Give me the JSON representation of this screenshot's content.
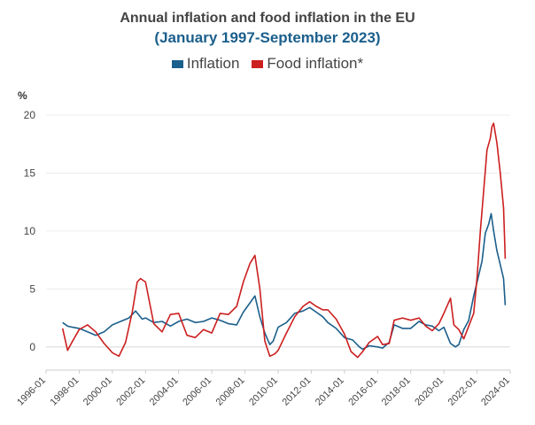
{
  "chart_data": {
    "type": "line",
    "title": "Annual inflation and food inflation in the EU",
    "subtitle": "(January 1997-September 2023)",
    "ylabel": "%",
    "ylim": [
      -2,
      20
    ],
    "yticks": [
      0,
      5,
      10,
      15,
      20
    ],
    "xlim": [
      1996.0,
      2024.0
    ],
    "xticks": [
      "1996-01",
      "1998-01",
      "2000-01",
      "2002-01",
      "2004-01",
      "2006-01",
      "2008-01",
      "2010-01",
      "2012-01",
      "2014-01",
      "2016-01",
      "2018-01",
      "2020-01",
      "2022-01",
      "2024-01"
    ],
    "legend": "top",
    "series": [
      {
        "name": "Inflation",
        "color": "#1b5f8c",
        "x": [
          1997.0,
          1997.3,
          1997.6,
          1998.0,
          1998.5,
          1999.0,
          1999.5,
          2000.0,
          2000.5,
          2001.0,
          2001.4,
          2001.8,
          2002.0,
          2002.5,
          2003.0,
          2003.5,
          2004.0,
          2004.5,
          2005.0,
          2005.5,
          2006.0,
          2006.5,
          2007.0,
          2007.5,
          2007.9,
          2008.3,
          2008.6,
          2008.9,
          2009.2,
          2009.5,
          2009.7,
          2010.0,
          2010.5,
          2011.0,
          2011.5,
          2011.9,
          2012.3,
          2012.7,
          2013.0,
          2013.5,
          2014.0,
          2014.5,
          2014.9,
          2015.1,
          2015.5,
          2016.0,
          2016.3,
          2016.7,
          2017.0,
          2017.5,
          2018.0,
          2018.5,
          2018.9,
          2019.3,
          2019.7,
          2020.0,
          2020.4,
          2020.7,
          2020.9,
          2021.2,
          2021.5,
          2021.8,
          2022.0,
          2022.3,
          2022.5,
          2022.7,
          2022.85,
          2023.0,
          2023.2,
          2023.4,
          2023.6,
          2023.7
        ],
        "y": [
          2.1,
          1.8,
          1.7,
          1.6,
          1.3,
          1.0,
          1.3,
          1.9,
          2.2,
          2.5,
          3.1,
          2.4,
          2.5,
          2.1,
          2.2,
          1.8,
          2.2,
          2.4,
          2.1,
          2.2,
          2.5,
          2.3,
          2.0,
          1.9,
          3.0,
          3.8,
          4.4,
          2.6,
          1.2,
          0.2,
          0.5,
          1.7,
          2.1,
          2.9,
          3.1,
          3.4,
          3.0,
          2.6,
          2.1,
          1.6,
          0.8,
          0.6,
          0.0,
          -0.2,
          0.1,
          0.0,
          -0.1,
          0.4,
          1.9,
          1.6,
          1.6,
          2.2,
          1.9,
          1.8,
          1.4,
          1.7,
          0.3,
          0.0,
          0.2,
          1.5,
          2.3,
          4.4,
          5.6,
          7.4,
          9.8,
          10.6,
          11.5,
          10.0,
          8.3,
          7.1,
          5.9,
          3.6
        ]
      },
      {
        "name": "Food inflation*",
        "color": "#cc1f1f",
        "x": [
          1997.0,
          1997.3,
          1997.6,
          1998.0,
          1998.5,
          1999.0,
          1999.5,
          2000.0,
          2000.4,
          2000.8,
          2001.2,
          2001.5,
          2001.7,
          2002.0,
          2002.5,
          2003.0,
          2003.5,
          2004.0,
          2004.5,
          2005.0,
          2005.5,
          2006.0,
          2006.5,
          2007.0,
          2007.5,
          2007.9,
          2008.3,
          2008.6,
          2008.9,
          2009.2,
          2009.5,
          2009.8,
          2010.0,
          2010.5,
          2011.0,
          2011.5,
          2011.9,
          2012.3,
          2012.7,
          2013.0,
          2013.5,
          2014.0,
          2014.4,
          2014.8,
          2015.1,
          2015.5,
          2016.0,
          2016.3,
          2016.7,
          2017.0,
          2017.5,
          2018.0,
          2018.5,
          2018.9,
          2019.3,
          2019.7,
          2020.0,
          2020.4,
          2020.6,
          2020.9,
          2021.2,
          2021.5,
          2021.8,
          2022.0,
          2022.2,
          2022.4,
          2022.6,
          2022.8,
          2022.9,
          2023.0,
          2023.2,
          2023.4,
          2023.6,
          2023.7
        ],
        "y": [
          1.6,
          -0.3,
          0.5,
          1.5,
          1.9,
          1.3,
          0.3,
          -0.5,
          -0.8,
          0.4,
          3.0,
          5.6,
          5.9,
          5.6,
          2.0,
          1.3,
          2.8,
          2.9,
          1.0,
          0.8,
          1.5,
          1.2,
          2.9,
          2.8,
          3.5,
          5.6,
          7.2,
          7.9,
          5.0,
          0.5,
          -0.8,
          -0.6,
          -0.3,
          1.2,
          2.6,
          3.5,
          3.9,
          3.5,
          3.2,
          3.2,
          2.4,
          1.1,
          -0.4,
          -0.9,
          -0.4,
          0.4,
          0.9,
          0.2,
          0.3,
          2.3,
          2.5,
          2.3,
          2.5,
          1.8,
          1.4,
          2.0,
          2.9,
          4.2,
          1.9,
          1.5,
          0.7,
          1.8,
          2.9,
          6.0,
          10.0,
          13.5,
          17.0,
          18.0,
          19.0,
          19.3,
          17.6,
          15.0,
          12.0,
          7.6
        ]
      }
    ]
  }
}
